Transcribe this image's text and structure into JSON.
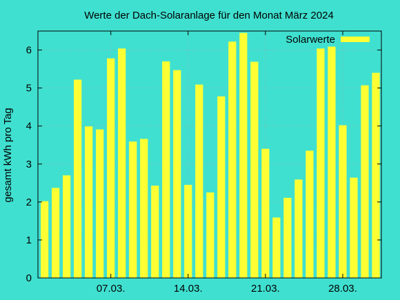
{
  "chart_data": {
    "type": "bar",
    "title": "Werte der Dach-Solaranlage für den Monat März 2024",
    "xlabel": "",
    "ylabel": "gesamt kWh pro Tag",
    "legend_position": "top-right",
    "grid": true,
    "ylim": [
      0,
      6.5
    ],
    "yticks": [
      0,
      1,
      2,
      3,
      4,
      5,
      6
    ],
    "xticks": [
      {
        "day": 7,
        "label": "07.03."
      },
      {
        "day": 14,
        "label": "14.03."
      },
      {
        "day": 21,
        "label": "21.03."
      },
      {
        "day": 28,
        "label": "28.03."
      }
    ],
    "days": [
      1,
      2,
      3,
      4,
      5,
      6,
      7,
      8,
      9,
      10,
      11,
      12,
      13,
      14,
      15,
      16,
      17,
      18,
      19,
      20,
      21,
      22,
      23,
      24,
      25,
      26,
      27,
      28,
      29,
      30,
      31
    ],
    "series": [
      {
        "name": "Solarwerte",
        "color": "#ffff33",
        "values": [
          2.02,
          2.37,
          2.7,
          5.22,
          3.99,
          3.91,
          5.78,
          6.04,
          3.59,
          3.66,
          2.43,
          5.7,
          5.47,
          2.45,
          5.09,
          2.25,
          4.78,
          6.22,
          6.45,
          5.69,
          3.4,
          1.59,
          2.11,
          2.59,
          3.35,
          6.04,
          6.09,
          4.02,
          2.64,
          5.07,
          5.4
        ]
      }
    ]
  },
  "colors": {
    "background": "#40e0d0",
    "bar": "#ffff33",
    "grid": "#a0a0a0",
    "axis": "#000000"
  }
}
